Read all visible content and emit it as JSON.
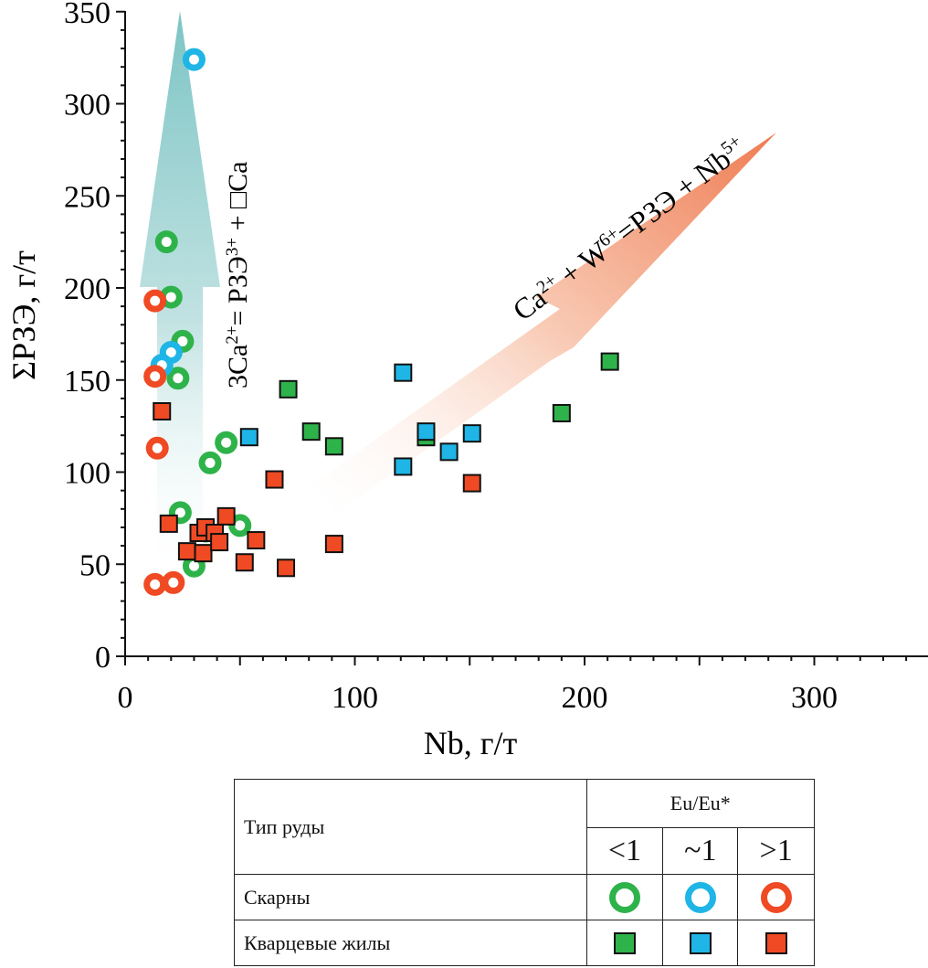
{
  "chart_data": {
    "type": "scatter",
    "xlabel": "Nb, г/т",
    "ylabel": "ΣРЗЭ, г/т",
    "xlim": [
      0,
      350
    ],
    "ylim": [
      0,
      350
    ],
    "x_ticks": [
      0,
      100,
      200,
      300
    ],
    "y_ticks": [
      0,
      50,
      100,
      150,
      200,
      250,
      300,
      350
    ],
    "grid": false,
    "colors": {
      "lt1": "#2eb34a",
      "approx1": "#1fb5e6",
      "gt1": "#ef4a23"
    },
    "series": [
      {
        "name": "Скарны <1",
        "marker": "ring",
        "color_key": "lt1",
        "points": [
          [
            18,
            225
          ],
          [
            20,
            195
          ],
          [
            25,
            171
          ],
          [
            23,
            151
          ],
          [
            44,
            116
          ],
          [
            37,
            105
          ],
          [
            24,
            78
          ],
          [
            50,
            71
          ],
          [
            30,
            49
          ],
          [
            35,
            68
          ]
        ]
      },
      {
        "name": "Скарны ~1",
        "marker": "ring",
        "color_key": "approx1",
        "points": [
          [
            30,
            324
          ],
          [
            20,
            165
          ],
          [
            16,
            158
          ]
        ]
      },
      {
        "name": "Скарны >1",
        "marker": "ring",
        "color_key": "gt1",
        "points": [
          [
            13,
            193
          ],
          [
            13,
            152
          ],
          [
            14,
            113
          ],
          [
            13,
            39
          ],
          [
            21,
            40
          ]
        ]
      },
      {
        "name": "Кварцевые жилы <1",
        "marker": "square",
        "color_key": "lt1",
        "points": [
          [
            71,
            145
          ],
          [
            81,
            122
          ],
          [
            91,
            114
          ],
          [
            131,
            119
          ],
          [
            190,
            132
          ],
          [
            211,
            160
          ]
        ]
      },
      {
        "name": "Кварцевые жилы ~1",
        "marker": "square",
        "color_key": "approx1",
        "points": [
          [
            54,
            119
          ],
          [
            121,
            154
          ],
          [
            121,
            103
          ],
          [
            131,
            122
          ],
          [
            141,
            111
          ],
          [
            151,
            121
          ]
        ]
      },
      {
        "name": "Кварцевые жилы >1",
        "marker": "square",
        "color_key": "gt1",
        "points": [
          [
            16,
            133
          ],
          [
            19,
            72
          ],
          [
            27,
            57
          ],
          [
            32,
            67
          ],
          [
            34,
            56
          ],
          [
            35,
            70
          ],
          [
            39,
            67
          ],
          [
            41,
            62
          ],
          [
            44,
            76
          ],
          [
            52,
            51
          ],
          [
            57,
            63
          ],
          [
            65,
            96
          ],
          [
            70,
            48
          ],
          [
            91,
            61
          ],
          [
            151,
            94
          ]
        ]
      }
    ],
    "annotations": [
      {
        "id": "vertical_arrow",
        "text_main": "3Ca",
        "text_sup": "2+",
        "text_mid": "= РЗЭ",
        "text_sup2": "3+",
        "text_end": " + □Ca"
      },
      {
        "id": "diagonal_arrow",
        "text_main": "Ca",
        "text_sup": "2+",
        "text_mid": " + W",
        "text_sup2": "6+",
        "text_mid2": "=РЗЭ + Nb",
        "text_sup3": "5+"
      }
    ]
  },
  "legend": {
    "col_type": "Тип руды",
    "col_eu": "Eu/Eu*",
    "sub_lt": "<1",
    "sub_approx": "~1",
    "sub_gt": ">1",
    "row_skarn": "Скарны",
    "row_quartz": "Кварцевые жилы"
  }
}
